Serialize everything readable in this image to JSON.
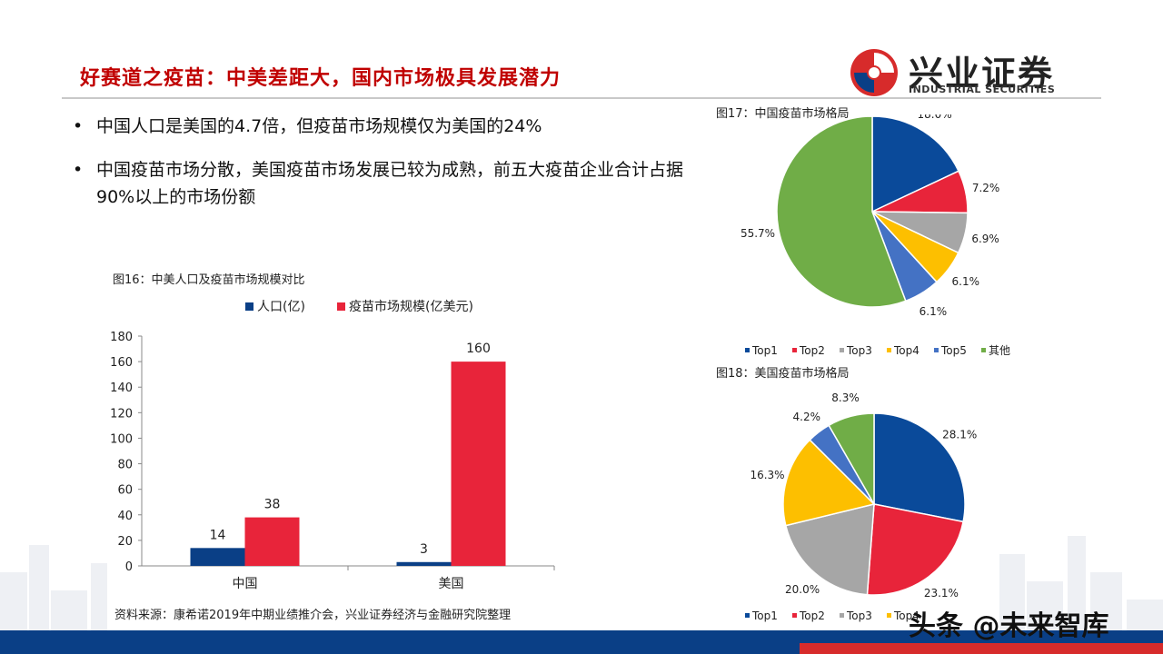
{
  "title": "好赛道之疫苗：中美差距大，国内市场极具发展潜力",
  "logo": {
    "cn": "兴业证券",
    "en": "INDUSTRIAL SECURITIES"
  },
  "bullets": [
    "中国人口是美国的4.7倍，但疫苗市场规模仅为美国的24%",
    "中国疫苗市场分散，美国疫苗市场发展已较为成熟，前五大疫苗企业合计占据90%以上的市场份额"
  ],
  "bullet_marker": "•",
  "source": "资料来源：康希诺2019年中期业绩推介会，兴业证券经济与金融研究院整理",
  "watermark": "头条 @未来智库",
  "colors": {
    "accent": "#c00000",
    "navy": "#0a3f86",
    "red": "#e8243a"
  },
  "chart_data": [
    {
      "type": "bar",
      "title": "图16：中美人口及疫苗市场规模对比",
      "categories": [
        "中国",
        "美国"
      ],
      "series": [
        {
          "name": "人口(亿)",
          "values": [
            14,
            3
          ],
          "color": "#0a3f86"
        },
        {
          "name": "疫苗市场规模(亿美元)",
          "values": [
            38,
            160
          ],
          "color": "#e8243a"
        }
      ],
      "ylim": [
        0,
        180
      ],
      "yticks": [
        0,
        20,
        40,
        60,
        80,
        100,
        120,
        140,
        160,
        180
      ],
      "legend": "top",
      "grid": false
    },
    {
      "type": "pie",
      "title": "图17：中国疫苗市场格局",
      "labels": [
        "Top1",
        "Top2",
        "Top3",
        "Top4",
        "Top5",
        "其他"
      ],
      "values": [
        18.0,
        7.2,
        6.9,
        6.1,
        6.1,
        55.7
      ],
      "value_labels": [
        "18.0%",
        "7.2%",
        "6.9%",
        "6.1%",
        "6.1%",
        "55.7%"
      ],
      "colors": [
        "#0a4a9a",
        "#e8243a",
        "#a6a6a6",
        "#fdbf00",
        "#4472c4",
        "#70ad47"
      ],
      "legend": "bottom"
    },
    {
      "type": "pie",
      "title": "图18：美国疫苗市场格局",
      "labels": [
        "Top1",
        "Top2",
        "Top3",
        "Top4",
        "Top5",
        "其他"
      ],
      "values": [
        28.1,
        23.1,
        20.0,
        16.3,
        4.2,
        8.3
      ],
      "value_labels": [
        "28.1%",
        "23.1%",
        "20.0%",
        "16.3%",
        "4.2%",
        "8.3%"
      ],
      "colors": [
        "#0a4a9a",
        "#e8243a",
        "#a6a6a6",
        "#fdbf00",
        "#4472c4",
        "#70ad47"
      ],
      "legend_visible": [
        "Top1",
        "Top2",
        "Top3",
        "Top4"
      ],
      "legend": "bottom"
    }
  ]
}
